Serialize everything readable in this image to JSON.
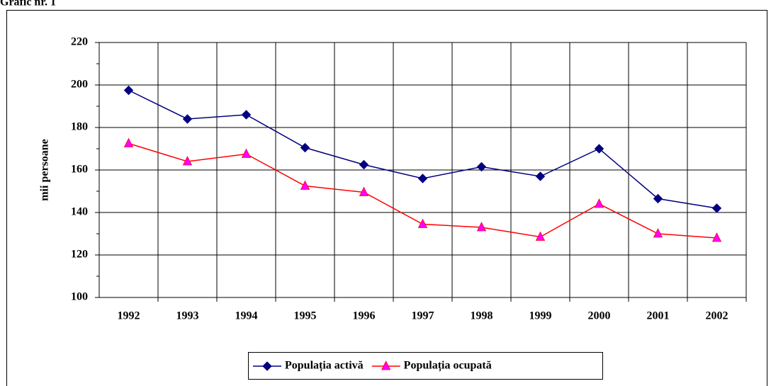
{
  "chart_data": {
    "type": "line",
    "title": "Grafic nr. 1",
    "y_label": "mii persoane",
    "categories": [
      "1992",
      "1993",
      "1994",
      "1995",
      "1996",
      "1997",
      "1998",
      "1999",
      "2000",
      "2001",
      "2002"
    ],
    "series": [
      {
        "name": "Populația activă",
        "color": "#000080",
        "marker": "diamond",
        "marker_color": "#000080",
        "values": [
          197.5,
          184,
          186,
          170.5,
          162.5,
          156,
          161.5,
          157,
          170,
          146.5,
          142
        ]
      },
      {
        "name": "Populația ocupată",
        "color": "#ff0000",
        "marker": "triangle",
        "marker_color": "#ff00ff",
        "values": [
          172.5,
          164,
          167.5,
          152.5,
          149.5,
          134.5,
          133,
          128.5,
          144,
          130,
          128
        ]
      }
    ],
    "ylim": [
      100,
      220
    ],
    "yticks": [
      100,
      120,
      140,
      160,
      180,
      200,
      220
    ],
    "grid": true,
    "legend": "bottom"
  }
}
